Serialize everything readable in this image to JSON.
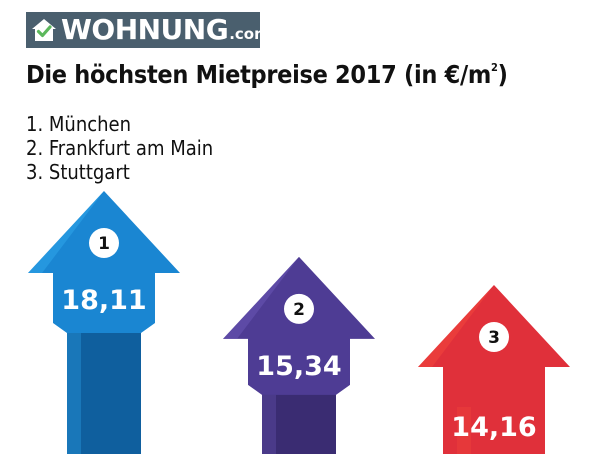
{
  "brand": {
    "name": "WOHNUNG",
    "tld": ".com",
    "colors": {
      "background": "#4a5f6e",
      "accent": "#5cb85c"
    }
  },
  "title": {
    "main": "Die höchsten Mietpreise 2017 (in €/m",
    "sup": "2",
    "close": ")"
  },
  "ranking": [
    {
      "rank": "1.",
      "city": "München"
    },
    {
      "rank": "2.",
      "city": "Frankfurt am Main"
    },
    {
      "rank": "3.",
      "city": "Stuttgart"
    }
  ],
  "chart_data": {
    "type": "bar",
    "orientation": "vertical-arrows",
    "categories": [
      "München",
      "Frankfurt am Main",
      "Stuttgart"
    ],
    "values": [
      18.11,
      15.34,
      14.16
    ],
    "value_labels": [
      "18,11",
      "15,34",
      "14,16"
    ],
    "rank_labels": [
      "1",
      "2",
      "3"
    ],
    "colors": [
      "#1a86d2",
      "#4e3c94",
      "#e0303a"
    ],
    "colors_light": [
      "#2fa6ea",
      "#6a55b4",
      "#f2473d"
    ],
    "colors_dark": [
      "#0f5f9e",
      "#3a2c72",
      "#b81f2a"
    ],
    "unit": "€/m²"
  }
}
